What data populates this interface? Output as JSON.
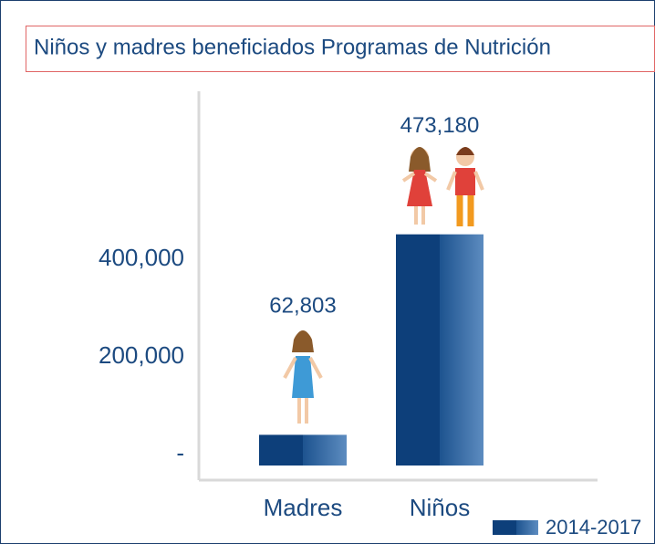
{
  "chart_data": {
    "type": "bar",
    "title": "Niños y madres beneficiados Programas de Nutrición",
    "categories": [
      "Madres",
      "Niños"
    ],
    "series": [
      {
        "name": "2014-2017",
        "color": "#0d3f7a",
        "values": [
          62803,
          473180
        ],
        "value_labels": [
          "62,803",
          "473,180"
        ]
      }
    ],
    "ylim": [
      0,
      766000
    ],
    "yticks": [
      {
        "value": 0,
        "label": "-"
      },
      {
        "value": 200000,
        "label": "200,000"
      },
      {
        "value": 400000,
        "label": "400,000"
      }
    ],
    "legend": "bottom-right"
  }
}
